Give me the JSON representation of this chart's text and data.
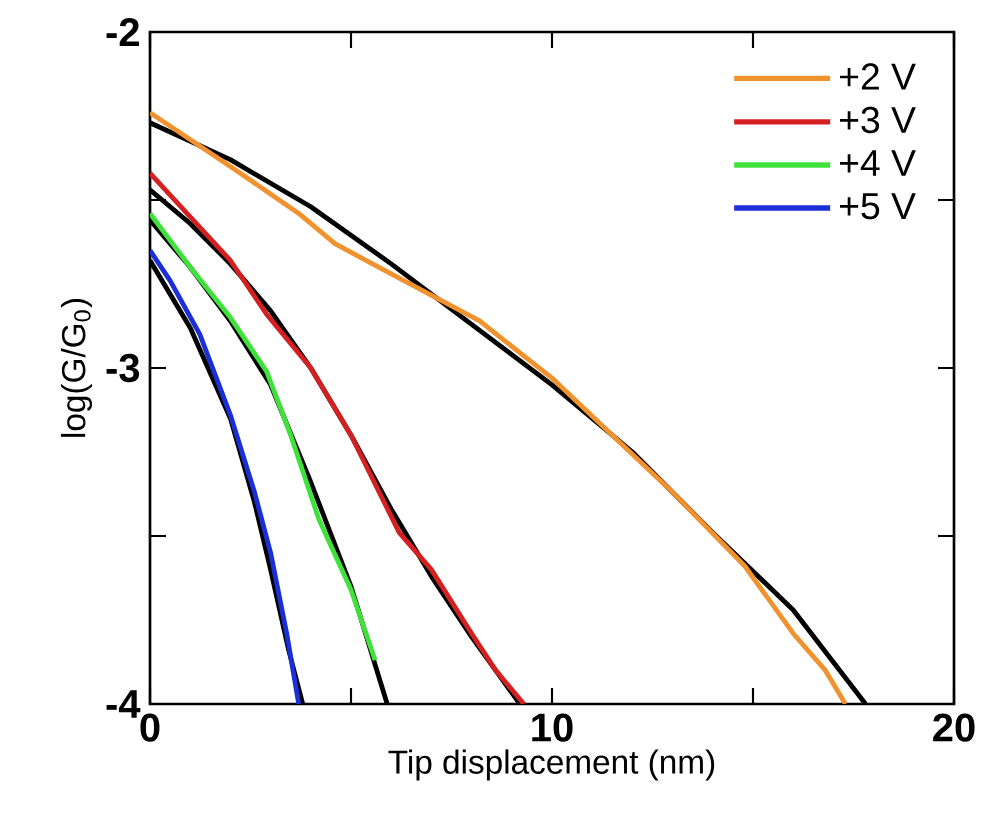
{
  "chart_data": {
    "type": "line",
    "xlabel": "Tip displacement (nm)",
    "ylabel": "log(G/G$_{0}$)",
    "xlim": [
      0,
      20
    ],
    "ylim": [
      -4,
      -2
    ],
    "xticks": [
      0,
      {
        "value": 5,
        "label": null
      },
      10,
      {
        "value": 15,
        "label": null
      },
      20
    ],
    "yticks": [
      -4,
      {
        "value": -3.5,
        "label": null
      },
      -3,
      {
        "value": -2.5,
        "label": null
      },
      -2
    ],
    "grid": false,
    "legend": "top right",
    "marker": "none",
    "line_style": "solid",
    "series": [
      {
        "color": "#000000",
        "x": [
          0,
          2,
          4,
          6,
          8,
          10,
          12,
          14,
          16,
          17.8
        ],
        "values": [
          -2.27,
          -2.38,
          -2.52,
          -2.69,
          -2.87,
          -3.05,
          -3.25,
          -3.49,
          -3.72,
          -4
        ]
      },
      {
        "color": "#000000",
        "x": [
          0,
          1,
          2,
          3,
          4,
          5,
          6,
          7,
          8,
          9.2
        ],
        "values": [
          -2.47,
          -2.57,
          -2.69,
          -2.83,
          -3.0,
          -3.2,
          -3.42,
          -3.62,
          -3.8,
          -4
        ]
      },
      {
        "color": "#000000",
        "x": [
          0,
          1,
          2,
          3,
          4,
          5,
          5.9
        ],
        "values": [
          -2.56,
          -2.7,
          -2.86,
          -3.05,
          -3.34,
          -3.65,
          -4
        ]
      },
      {
        "color": "#000000",
        "x": [
          0,
          1,
          2,
          2.6,
          3,
          3.45,
          3.8
        ],
        "values": [
          -2.68,
          -2.88,
          -3.15,
          -3.4,
          -3.6,
          -3.84,
          -4
        ]
      },
      {
        "name": "+2 V",
        "color": "#f0922e",
        "x": [
          0,
          1,
          2,
          3.7,
          4.6,
          6,
          8.2,
          10,
          11.5,
          13,
          14.8,
          16,
          16.8,
          17.3
        ],
        "values": [
          -2.24,
          -2.32,
          -2.4,
          -2.54,
          -2.63,
          -2.72,
          -2.86,
          -3.03,
          -3.2,
          -3.37,
          -3.59,
          -3.79,
          -3.9,
          -4
        ]
      },
      {
        "name": "+3 V",
        "color": "#d42020",
        "x": [
          0,
          1,
          2,
          2.9,
          4,
          5,
          6.2,
          7,
          8,
          8.6,
          9.3
        ],
        "values": [
          -2.42,
          -2.55,
          -2.68,
          -2.84,
          -3.0,
          -3.2,
          -3.49,
          -3.6,
          -3.79,
          -3.9,
          -4
        ]
      },
      {
        "name": "+4 V",
        "color": "#3ee23a",
        "x": [
          0,
          0.5,
          1,
          2,
          2.9,
          3.5,
          4.2,
          5,
          5.6
        ],
        "values": [
          -2.54,
          -2.62,
          -2.7,
          -2.85,
          -3.01,
          -3.2,
          -3.45,
          -3.66,
          -3.87
        ]
      },
      {
        "name": "+5 V",
        "color": "#1a2fd6",
        "x": [
          0,
          0.5,
          1.24,
          2,
          2.6,
          3,
          3.4,
          3.7
        ],
        "values": [
          -2.65,
          -2.74,
          -2.9,
          -3.14,
          -3.37,
          -3.55,
          -3.79,
          -4
        ]
      }
    ]
  }
}
